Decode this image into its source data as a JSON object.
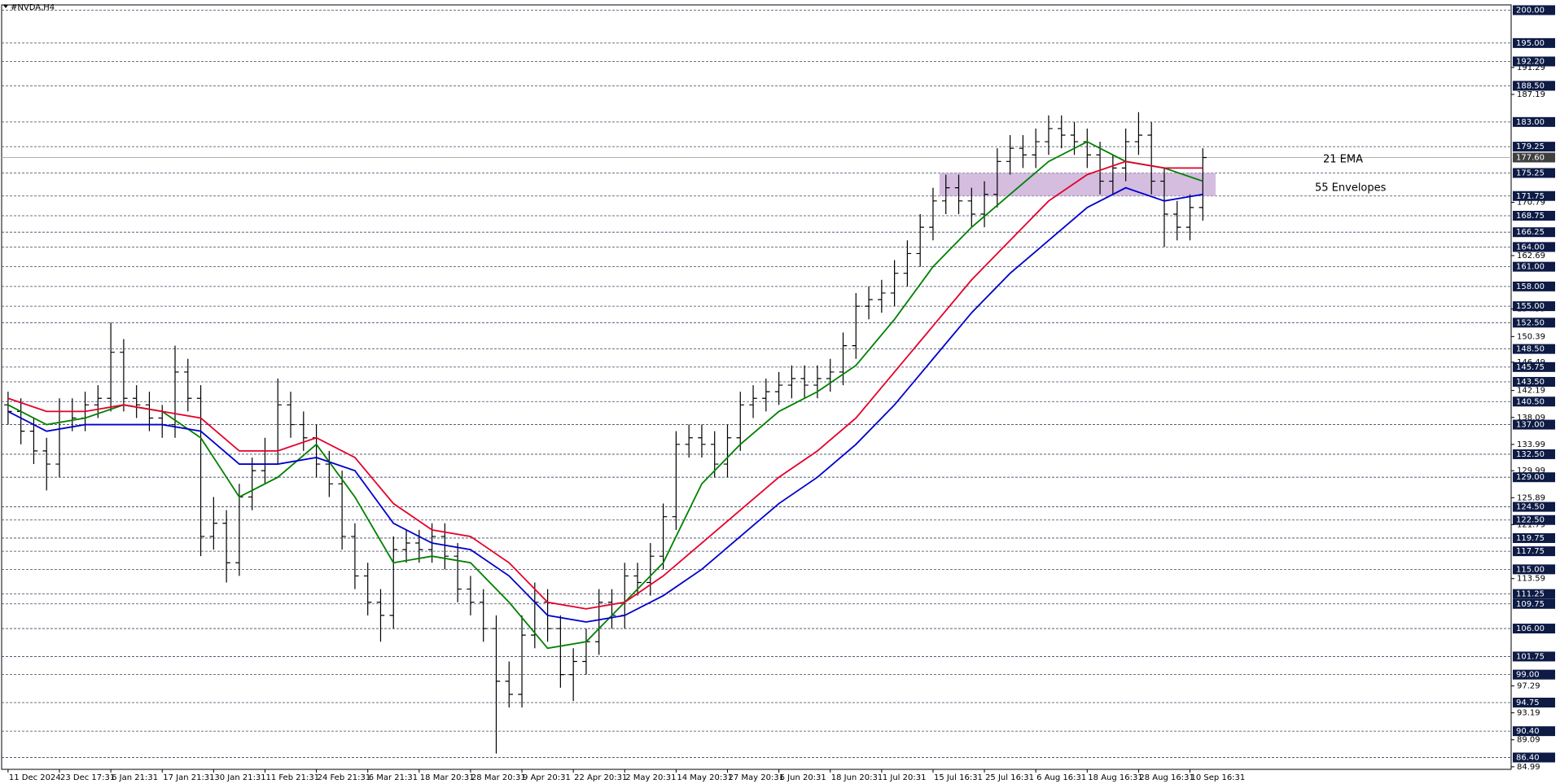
{
  "chart_data": {
    "type": "ohlc",
    "title": "#NVDA,H4",
    "open": [
      140,
      139,
      136,
      133,
      131,
      139,
      138,
      140,
      141,
      148,
      141,
      140,
      138,
      137,
      145,
      141,
      120,
      122,
      116,
      126,
      130,
      133,
      140,
      137,
      135,
      131,
      128,
      120,
      114,
      110,
      108,
      118,
      119,
      118,
      120,
      117,
      112,
      110,
      106,
      98,
      96,
      105,
      110,
      106,
      99,
      101,
      104,
      110,
      108,
      114,
      113,
      117,
      123,
      134,
      135,
      134,
      131,
      135,
      140,
      141,
      142,
      143,
      144,
      143,
      144,
      145,
      149,
      155,
      156,
      157,
      160,
      163,
      167,
      171,
      173,
      171,
      169,
      172,
      177,
      179,
      178,
      180,
      182,
      181,
      180,
      178,
      174,
      176,
      180,
      181,
      174,
      169,
      167,
      170
    ],
    "high": [
      142,
      141,
      138,
      135,
      141,
      141,
      142,
      143,
      152.5,
      150,
      143,
      142,
      140,
      149,
      147,
      143,
      126,
      124,
      128,
      132,
      135,
      144,
      142,
      139,
      137,
      133,
      130,
      122,
      116,
      112,
      120,
      121,
      121,
      122,
      122,
      119,
      114,
      112,
      108,
      101,
      108,
      113,
      112,
      108,
      103,
      106,
      112,
      112,
      116,
      116,
      119,
      125,
      136,
      137,
      137,
      136,
      137,
      142,
      143,
      144,
      145,
      146,
      146,
      146,
      147,
      151,
      157,
      158,
      159,
      162,
      165,
      169,
      173,
      175,
      175,
      173,
      174,
      179,
      181,
      181,
      182,
      184,
      184,
      183,
      182,
      180,
      178,
      182,
      184.5,
      183,
      176,
      171,
      172,
      179
    ],
    "low": [
      137,
      134,
      131,
      127,
      129,
      136,
      136,
      138,
      139,
      139,
      138,
      136,
      135,
      135,
      139,
      117,
      118,
      113,
      114,
      124,
      128,
      131,
      135,
      133,
      129,
      126,
      118,
      112,
      108,
      104,
      106,
      116,
      116,
      116,
      115,
      110,
      108,
      104,
      87,
      94,
      94,
      103,
      104,
      97,
      95,
      99,
      102,
      106,
      106,
      111,
      111,
      115,
      121,
      132,
      132,
      129,
      129,
      133,
      138,
      139,
      140,
      141,
      141,
      141,
      142,
      143,
      147,
      153,
      154,
      155,
      158,
      161,
      165,
      169,
      169,
      167,
      167,
      170,
      175,
      176,
      176,
      178,
      179,
      178,
      176,
      172,
      172,
      174,
      178,
      172,
      164,
      165,
      165,
      168
    ],
    "close": [
      139,
      136,
      133,
      131,
      139,
      138,
      140,
      141,
      148,
      141,
      140,
      138,
      137,
      145,
      141,
      120,
      122,
      116,
      126,
      130,
      133,
      140,
      137,
      135,
      131,
      128,
      120,
      114,
      110,
      108,
      118,
      119,
      118,
      120,
      117,
      112,
      110,
      106,
      98,
      96,
      105,
      110,
      106,
      99,
      101,
      104,
      110,
      108,
      114,
      113,
      117,
      123,
      134,
      135,
      134,
      131,
      135,
      140,
      141,
      142,
      143,
      144,
      143,
      144,
      145,
      149,
      155,
      156,
      157,
      160,
      163,
      167,
      171,
      173,
      171,
      169,
      172,
      177,
      179,
      178,
      180,
      182,
      181,
      180,
      178,
      174,
      176,
      180,
      181,
      174,
      169,
      167,
      170,
      177.6
    ],
    "color": "#000000",
    "xlim": [
      -0.5,
      117
    ],
    "xticks": [
      {
        "value": 0,
        "label": "11 Dec 2024"
      },
      {
        "value": 4,
        "label": "23 Dec 17:31"
      },
      {
        "value": 8,
        "label": "6 Jan 21:31"
      },
      {
        "value": 12,
        "label": "17 Jan 21:31"
      },
      {
        "value": 16,
        "label": "30 Jan 21:31"
      },
      {
        "value": 20,
        "label": "11 Feb 21:31"
      },
      {
        "value": 24,
        "label": "24 Feb 21:31"
      },
      {
        "value": 28,
        "label": "6 Mar 21:31"
      },
      {
        "value": 32,
        "label": "18 Mar 20:31"
      },
      {
        "value": 36,
        "label": "28 Mar 20:31"
      },
      {
        "value": 40,
        "label": "9 Apr 20:31"
      },
      {
        "value": 44,
        "label": "22 Apr 20:31"
      },
      {
        "value": 48,
        "label": "2 May 20:31"
      },
      {
        "value": 52,
        "label": "14 May 20:31"
      },
      {
        "value": 56,
        "label": "27 May 20:31"
      },
      {
        "value": 60,
        "label": "6 Jun 20:31"
      },
      {
        "value": 64,
        "label": "18 Jun 20:31"
      },
      {
        "value": 68,
        "label": "1 Jul 20:31"
      },
      {
        "value": 72,
        "label": "15 Jul 16:31"
      },
      {
        "value": 76,
        "label": "25 Jul 16:31"
      },
      {
        "value": 80,
        "label": "6 Aug 16:31"
      },
      {
        "value": 84,
        "label": "18 Aug 16:31"
      },
      {
        "value": 88,
        "label": "28 Aug 16:31"
      },
      {
        "value": 92,
        "label": "10 Sep 16:31"
      }
    ],
    "ylim": [
      84.6,
      200.8
    ],
    "yticks": [
      191.29,
      187.19,
      170.79,
      162.69,
      154.59,
      150.39,
      146.49,
      142.19,
      138.09,
      133.99,
      129.99,
      125.89,
      121.79,
      113.59,
      97.29,
      93.19,
      89.09,
      84.99
    ],
    "levels": [
      {
        "value": 200,
        "label": "200.00"
      },
      {
        "value": 195,
        "label": "195.00"
      },
      {
        "value": 192.2,
        "label": "192.20"
      },
      {
        "value": 188.5,
        "label": "188.50"
      },
      {
        "value": 183,
        "label": "183.00"
      },
      179.25,
      175.25,
      171.75,
      168.75,
      166.25,
      {
        "value": 164,
        "label": "164.00"
      },
      {
        "value": 161,
        "label": "161.00"
      },
      {
        "value": 158,
        "label": "158.00"
      },
      {
        "value": 155,
        "label": "155.00"
      },
      {
        "value": 152.5,
        "label": "152.50"
      },
      {
        "value": 148.5,
        "label": "148.50"
      },
      145.75,
      {
        "value": 143.5,
        "label": "143.50"
      },
      {
        "value": 140.5,
        "label": "140.50"
      },
      {
        "value": 137,
        "label": "137.00"
      },
      {
        "value": 132.5,
        "label": "132.50"
      },
      {
        "value": 129,
        "label": "129.00"
      },
      {
        "value": 124.5,
        "label": "124.50"
      },
      {
        "value": 122.5,
        "label": "122.50"
      },
      119.75,
      117.75,
      {
        "value": 115,
        "label": "115.00"
      },
      111.25,
      109.75,
      {
        "value": 106,
        "label": "106.00"
      },
      101.75,
      {
        "value": 99,
        "label": "99.00"
      },
      94.75,
      {
        "value": 90.4,
        "label": "90.40"
      },
      {
        "value": 86.4,
        "label": "86.40"
      }
    ],
    "current": {
      "value": 177.6,
      "label": "177.60"
    },
    "zone": {
      "xlim": [
        72.5,
        94
      ],
      "ylim": [
        171.75,
        175.25
      ],
      "color": "#cdb2d9"
    },
    "series": [
      {
        "name": "21 EMA",
        "color": "#008000",
        "x": [
          0,
          3,
          6,
          9,
          12,
          15,
          18,
          21,
          24,
          27,
          30,
          33,
          36,
          39,
          42,
          45,
          48,
          51,
          54,
          57,
          60,
          63,
          66,
          69,
          72,
          75,
          78,
          81,
          84,
          87,
          90,
          93
        ],
        "values": [
          140,
          137,
          138,
          140,
          139,
          135,
          126,
          129,
          134,
          126,
          116,
          117,
          116,
          110,
          103,
          104,
          110,
          116,
          128,
          134,
          139,
          142,
          146,
          153,
          161,
          167,
          172,
          177,
          180,
          177,
          176,
          174
        ]
      },
      {
        "color": "#e4002b",
        "x": [
          0,
          3,
          6,
          9,
          12,
          15,
          18,
          21,
          24,
          27,
          30,
          33,
          36,
          39,
          42,
          45,
          48,
          51,
          54,
          57,
          60,
          63,
          66,
          69,
          72,
          75,
          78,
          81,
          84,
          87,
          90,
          93
        ],
        "values": [
          141,
          139,
          139,
          140,
          139,
          138,
          133,
          133,
          135,
          132,
          125,
          121,
          120,
          116,
          110,
          109,
          110,
          114,
          119,
          124,
          129,
          133,
          138,
          145,
          152,
          159,
          165,
          171,
          175,
          177,
          176,
          176
        ]
      },
      {
        "name": "55 Envelopes",
        "color": "#0000cc",
        "x": [
          0,
          3,
          6,
          9,
          12,
          15,
          18,
          21,
          24,
          27,
          30,
          33,
          36,
          39,
          42,
          45,
          48,
          51,
          54,
          57,
          60,
          63,
          66,
          69,
          72,
          75,
          78,
          81,
          84,
          87,
          90,
          93
        ],
        "values": [
          139,
          136,
          137,
          137,
          137,
          136,
          131,
          131,
          132,
          130,
          122,
          119,
          118,
          114,
          108,
          107,
          108,
          111,
          115,
          120,
          125,
          129,
          134,
          140,
          147,
          154,
          160,
          165,
          170,
          173,
          171,
          172
        ]
      }
    ]
  }
}
